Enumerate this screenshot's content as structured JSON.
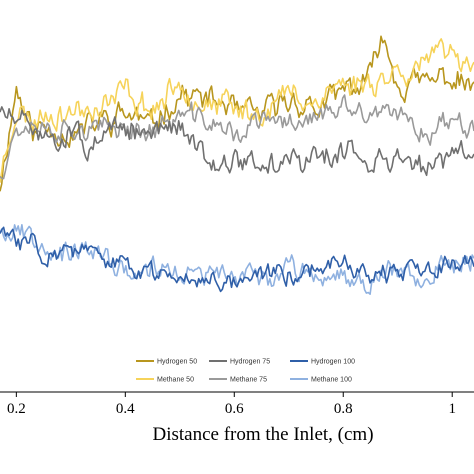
{
  "chart_data": {
    "type": "line",
    "title": "",
    "xlabel": "Distance from the Inlet, (cm)",
    "ylabel": "",
    "xlim": [
      0.17,
      1.04
    ],
    "ylim": [
      0,
      1
    ],
    "x_ticks": [
      "0.2",
      "0.4",
      "0.6",
      "0.8",
      "1"
    ],
    "grid": false,
    "legend_position": "bottom-center",
    "series": [
      {
        "name": "Hydrogen 50",
        "color": "#b8961e",
        "anchors": [
          [
            0.17,
            0.53
          ],
          [
            0.2,
            0.78
          ],
          [
            0.23,
            0.67
          ],
          [
            0.26,
            0.68
          ],
          [
            0.3,
            0.66
          ],
          [
            0.35,
            0.69
          ],
          [
            0.4,
            0.72
          ],
          [
            0.45,
            0.68
          ],
          [
            0.5,
            0.77
          ],
          [
            0.55,
            0.74
          ],
          [
            0.6,
            0.72
          ],
          [
            0.65,
            0.7
          ],
          [
            0.7,
            0.75
          ],
          [
            0.75,
            0.72
          ],
          [
            0.8,
            0.76
          ],
          [
            0.85,
            0.79
          ],
          [
            0.87,
            0.93
          ],
          [
            0.9,
            0.8
          ],
          [
            0.95,
            0.79
          ],
          [
            1.0,
            0.8
          ],
          [
            1.04,
            0.76
          ]
        ],
        "amplitude": 0.034,
        "seed": 11
      },
      {
        "name": "Methane 50",
        "color": "#f6d35a",
        "anchors": [
          [
            0.17,
            0.55
          ],
          [
            0.2,
            0.72
          ],
          [
            0.23,
            0.69
          ],
          [
            0.26,
            0.72
          ],
          [
            0.3,
            0.71
          ],
          [
            0.35,
            0.72
          ],
          [
            0.4,
            0.76
          ],
          [
            0.45,
            0.72
          ],
          [
            0.5,
            0.78
          ],
          [
            0.55,
            0.75
          ],
          [
            0.6,
            0.73
          ],
          [
            0.65,
            0.71
          ],
          [
            0.7,
            0.76
          ],
          [
            0.75,
            0.75
          ],
          [
            0.8,
            0.78
          ],
          [
            0.85,
            0.8
          ],
          [
            0.9,
            0.82
          ],
          [
            0.95,
            0.84
          ],
          [
            1.0,
            0.86
          ],
          [
            1.04,
            0.87
          ]
        ],
        "amplitude": 0.034,
        "seed": 23
      },
      {
        "name": "Methane 75",
        "color": "#9a9a9a",
        "anchors": [
          [
            0.17,
            0.56
          ],
          [
            0.2,
            0.68
          ],
          [
            0.23,
            0.68
          ],
          [
            0.26,
            0.67
          ],
          [
            0.3,
            0.67
          ],
          [
            0.35,
            0.66
          ],
          [
            0.4,
            0.68
          ],
          [
            0.45,
            0.66
          ],
          [
            0.5,
            0.71
          ],
          [
            0.55,
            0.69
          ],
          [
            0.6,
            0.66
          ],
          [
            0.65,
            0.69
          ],
          [
            0.7,
            0.69
          ],
          [
            0.75,
            0.7
          ],
          [
            0.8,
            0.71
          ],
          [
            0.85,
            0.7
          ],
          [
            0.9,
            0.7
          ],
          [
            0.95,
            0.67
          ],
          [
            1.0,
            0.69
          ],
          [
            1.04,
            0.7
          ]
        ],
        "amplitude": 0.03,
        "seed": 37
      },
      {
        "name": "Hydrogen 75",
        "color": "#707070",
        "anchors": [
          [
            0.17,
            0.72
          ],
          [
            0.2,
            0.68
          ],
          [
            0.23,
            0.67
          ],
          [
            0.26,
            0.66
          ],
          [
            0.3,
            0.66
          ],
          [
            0.35,
            0.64
          ],
          [
            0.4,
            0.67
          ],
          [
            0.45,
            0.66
          ],
          [
            0.5,
            0.67
          ],
          [
            0.55,
            0.61
          ],
          [
            0.6,
            0.59
          ],
          [
            0.65,
            0.58
          ],
          [
            0.7,
            0.59
          ],
          [
            0.75,
            0.6
          ],
          [
            0.8,
            0.62
          ],
          [
            0.85,
            0.6
          ],
          [
            0.9,
            0.59
          ],
          [
            0.95,
            0.57
          ],
          [
            1.0,
            0.6
          ],
          [
            1.04,
            0.6
          ]
        ],
        "amplitude": 0.032,
        "seed": 51
      },
      {
        "name": "Methane 100",
        "color": "#8fb1e0",
        "anchors": [
          [
            0.17,
            0.42
          ],
          [
            0.2,
            0.42
          ],
          [
            0.23,
            0.41
          ],
          [
            0.26,
            0.39
          ],
          [
            0.3,
            0.35
          ],
          [
            0.35,
            0.34
          ],
          [
            0.4,
            0.31
          ],
          [
            0.45,
            0.3
          ],
          [
            0.5,
            0.31
          ],
          [
            0.55,
            0.3
          ],
          [
            0.6,
            0.29
          ],
          [
            0.65,
            0.3
          ],
          [
            0.7,
            0.31
          ],
          [
            0.75,
            0.31
          ],
          [
            0.8,
            0.31
          ],
          [
            0.85,
            0.3
          ],
          [
            0.9,
            0.3
          ],
          [
            0.95,
            0.31
          ],
          [
            1.0,
            0.33
          ],
          [
            1.04,
            0.34
          ]
        ],
        "amplitude": 0.03,
        "seed": 67
      },
      {
        "name": "Hydrogen 100",
        "color": "#2f5fa8",
        "anchors": [
          [
            0.17,
            0.41
          ],
          [
            0.2,
            0.38
          ],
          [
            0.23,
            0.39
          ],
          [
            0.26,
            0.36
          ],
          [
            0.3,
            0.36
          ],
          [
            0.35,
            0.34
          ],
          [
            0.4,
            0.32
          ],
          [
            0.45,
            0.3
          ],
          [
            0.5,
            0.3
          ],
          [
            0.55,
            0.3
          ],
          [
            0.6,
            0.29
          ],
          [
            0.65,
            0.31
          ],
          [
            0.7,
            0.31
          ],
          [
            0.75,
            0.32
          ],
          [
            0.8,
            0.32
          ],
          [
            0.85,
            0.31
          ],
          [
            0.9,
            0.3
          ],
          [
            0.95,
            0.31
          ],
          [
            1.0,
            0.33
          ],
          [
            1.04,
            0.34
          ]
        ],
        "amplitude": 0.026,
        "seed": 83
      }
    ],
    "legend_rows": [
      [
        "Hydrogen 50",
        "Hydrogen 75",
        "Hydrogen 100"
      ],
      [
        "Methane 50",
        "Methane 75",
        "Methane 100"
      ]
    ]
  }
}
